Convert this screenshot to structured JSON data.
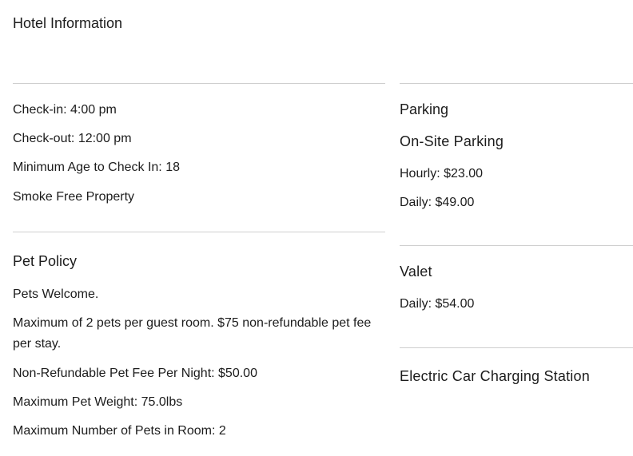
{
  "title": "Hotel Information",
  "policies": {
    "check_in": "Check-in: 4:00 pm",
    "check_out": "Check-out: 12:00 pm",
    "min_age": "Minimum Age to Check In: 18",
    "smoke_free": "Smoke Free Property"
  },
  "pet_policy": {
    "heading": "Pet Policy",
    "welcome": "Pets Welcome.",
    "max_pets_fee": "Maximum of 2 pets per guest room. $75 non-refundable pet fee per stay.",
    "nightly_fee": "Non-Refundable Pet Fee Per Night: $50.00",
    "max_weight": "Maximum Pet Weight: 75.0lbs",
    "max_number": "Maximum Number of Pets in Room: 2"
  },
  "parking": {
    "heading": "Parking",
    "onsite_heading": "On-Site Parking",
    "hourly": "Hourly: $23.00",
    "daily": "Daily: $49.00",
    "valet_heading": "Valet",
    "valet_daily": "Daily: $54.00",
    "ev_heading": "Electric Car Charging Station"
  }
}
